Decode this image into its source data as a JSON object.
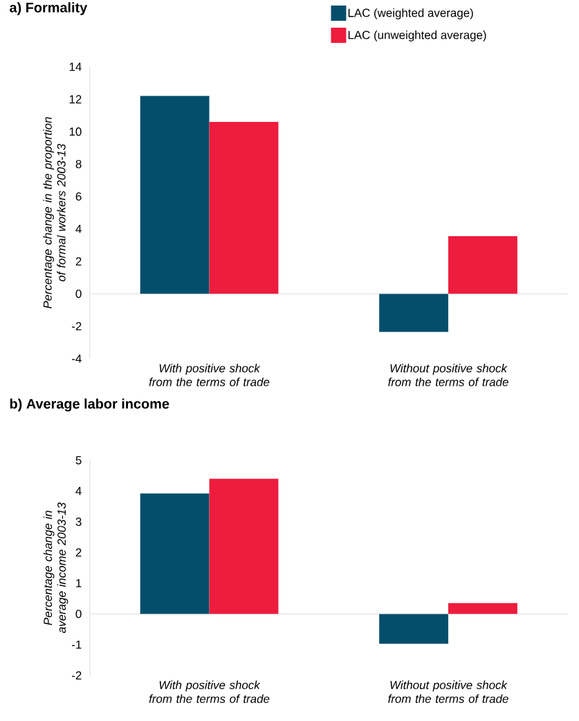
{
  "chart_data": [
    {
      "type": "bar",
      "title": "a) Formality",
      "ylabel": "Percentage change in the proportion of formal workers 2003-13",
      "categories": [
        "With positive shock from the terms of trade",
        "Without positive shock from the terms of trade"
      ],
      "series": [
        {
          "name": "LAC (weighted average)",
          "color": "#044e6c",
          "values": [
            12.2,
            -2.35
          ]
        },
        {
          "name": "LAC (unweighted average)",
          "color": "#ee1c3d",
          "values": [
            10.6,
            3.55
          ]
        }
      ],
      "ylim": [
        -4,
        14
      ],
      "yticks": [
        -4,
        -2,
        0,
        2,
        4,
        6,
        8,
        10,
        12,
        14
      ],
      "legend": "top right"
    },
    {
      "type": "bar",
      "title": "b) Average labor income",
      "ylabel": "Percentage change in average income 2003-13",
      "categories": [
        "With positive shock from the terms of trade",
        "Without positive shock from the terms of trade"
      ],
      "series": [
        {
          "color": "#044e6c",
          "values": [
            3.92,
            -0.97
          ]
        },
        {
          "color": "#ee1c3d",
          "values": [
            4.4,
            0.35
          ]
        }
      ],
      "ylim": [
        -2,
        5
      ],
      "yticks": [
        -2,
        -1,
        0,
        1,
        2,
        3,
        4,
        5
      ]
    }
  ]
}
